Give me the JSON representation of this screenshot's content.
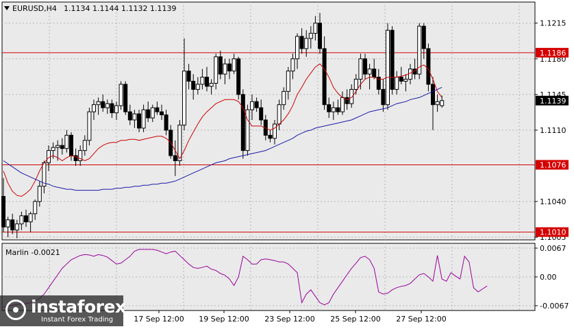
{
  "header": {
    "symbol": "EURUSD,H4",
    "ohlc": "1.1134 1.1144 1.1132 1.1139",
    "menu_icon": "triangle-down-icon"
  },
  "chart_data": [
    {
      "type": "candlestick",
      "title": "EURUSD,H4",
      "ylim": [
        1.1003,
        1.1235
      ],
      "y_ticks": [
        "1.1215",
        "1.1180",
        "1.1145",
        "1.1110",
        "1.1040",
        "1.1005"
      ],
      "price_level_labels": [
        "1.1186",
        "1.1139",
        "1.1076",
        "1.1010"
      ],
      "horizontal_levels": [
        1.1186,
        1.1076,
        1.101
      ],
      "current_price": 1.1139,
      "x_tick_labels": [
        "17 Sep 12:00",
        "19 Sep 12:00",
        "23 Sep 12:00",
        "25 Sep 12:00",
        "27 Sep 12:00"
      ],
      "candles": [
        [
          1.1045,
          1.1063,
          1.101,
          1.1015
        ],
        [
          1.1015,
          1.1025,
          1.1005,
          1.1022
        ],
        [
          1.1022,
          1.1028,
          1.1008,
          1.1012
        ],
        [
          1.1012,
          1.1022,
          1.1004,
          1.1018
        ],
        [
          1.1018,
          1.103,
          1.1012,
          1.1026
        ],
        [
          1.1026,
          1.1032,
          1.1015,
          1.102
        ],
        [
          1.102,
          1.103,
          1.101,
          1.1028
        ],
        [
          1.1028,
          1.1042,
          1.1022,
          1.104
        ],
        [
          1.104,
          1.106,
          1.1035,
          1.1055
        ],
        [
          1.1055,
          1.108,
          1.1048,
          1.1078
        ],
        [
          1.1078,
          1.1095,
          1.107,
          1.109
        ],
        [
          1.109,
          1.1098,
          1.1082,
          1.1093
        ],
        [
          1.1093,
          1.11,
          1.108,
          1.1095
        ],
        [
          1.1095,
          1.1102,
          1.1086,
          1.1092
        ],
        [
          1.1092,
          1.111,
          1.1088,
          1.1105
        ],
        [
          1.1105,
          1.1108,
          1.108,
          1.1085
        ],
        [
          1.1085,
          1.1092,
          1.1075,
          1.108
        ],
        [
          1.108,
          1.1095,
          1.1075,
          1.109
        ],
        [
          1.109,
          1.1105,
          1.1085,
          1.11
        ],
        [
          1.11,
          1.1132,
          1.1095,
          1.1128
        ],
        [
          1.1128,
          1.114,
          1.112,
          1.1135
        ],
        [
          1.1135,
          1.1142,
          1.1125,
          1.1138
        ],
        [
          1.1138,
          1.1145,
          1.1128,
          1.1132
        ],
        [
          1.1132,
          1.114,
          1.1126,
          1.1136
        ],
        [
          1.1136,
          1.114,
          1.1122,
          1.1127
        ],
        [
          1.1127,
          1.1138,
          1.112,
          1.1134
        ],
        [
          1.1134,
          1.1158,
          1.113,
          1.1155
        ],
        [
          1.1155,
          1.1158,
          1.1125,
          1.1128
        ],
        [
          1.1128,
          1.1135,
          1.1115,
          1.112
        ],
        [
          1.112,
          1.113,
          1.1112,
          1.1126
        ],
        [
          1.1126,
          1.113,
          1.1108,
          1.1112
        ],
        [
          1.1112,
          1.1135,
          1.1108,
          1.113
        ],
        [
          1.113,
          1.1138,
          1.1118,
          1.1122
        ],
        [
          1.1122,
          1.1135,
          1.1118,
          1.1132
        ],
        [
          1.1132,
          1.1138,
          1.1125,
          1.1128
        ],
        [
          1.1128,
          1.1135,
          1.112,
          1.1125
        ],
        [
          1.1125,
          1.113,
          1.1105,
          1.111
        ],
        [
          1.111,
          1.1115,
          1.1082,
          1.1085
        ],
        [
          1.1085,
          1.11,
          1.1065,
          1.108
        ],
        [
          1.108,
          1.112,
          1.1075,
          1.1115
        ],
        [
          1.1115,
          1.12,
          1.111,
          1.1168
        ],
        [
          1.1168,
          1.1175,
          1.115,
          1.1158
        ],
        [
          1.1158,
          1.1165,
          1.114,
          1.115
        ],
        [
          1.115,
          1.1162,
          1.1145,
          1.1155
        ],
        [
          1.1155,
          1.117,
          1.115,
          1.1162
        ],
        [
          1.1162,
          1.1172,
          1.1148,
          1.1153
        ],
        [
          1.1153,
          1.116,
          1.1145,
          1.1156
        ],
        [
          1.1156,
          1.1185,
          1.115,
          1.1182
        ],
        [
          1.1182,
          1.1188,
          1.116,
          1.1165
        ],
        [
          1.1165,
          1.118,
          1.1155,
          1.1175
        ],
        [
          1.1175,
          1.118,
          1.116,
          1.1168
        ],
        [
          1.1168,
          1.1185,
          1.1165,
          1.118
        ],
        [
          1.118,
          1.1182,
          1.114,
          1.1145
        ],
        [
          1.1145,
          1.115,
          1.1082,
          1.109
        ],
        [
          1.109,
          1.1135,
          1.1085,
          1.113
        ],
        [
          1.113,
          1.1145,
          1.112,
          1.1138
        ],
        [
          1.1138,
          1.1142,
          1.1128,
          1.1132
        ],
        [
          1.1132,
          1.114,
          1.1115,
          1.112
        ],
        [
          1.112,
          1.1125,
          1.11,
          1.1105
        ],
        [
          1.1105,
          1.111,
          1.1098,
          1.1102
        ],
        [
          1.1102,
          1.112,
          1.1096,
          1.1116
        ],
        [
          1.1116,
          1.114,
          1.111,
          1.1135
        ],
        [
          1.1135,
          1.1152,
          1.113,
          1.1148
        ],
        [
          1.1148,
          1.1172,
          1.114,
          1.1168
        ],
        [
          1.1168,
          1.1185,
          1.116,
          1.118
        ],
        [
          1.118,
          1.1205,
          1.117,
          1.1202
        ],
        [
          1.1202,
          1.121,
          1.1185,
          1.119
        ],
        [
          1.119,
          1.1208,
          1.1182,
          1.12
        ],
        [
          1.12,
          1.1212,
          1.119,
          1.1205
        ],
        [
          1.1205,
          1.1222,
          1.1198,
          1.1215
        ],
        [
          1.1215,
          1.1225,
          1.1185,
          1.119
        ],
        [
          1.119,
          1.1202,
          1.113,
          1.1135
        ],
        [
          1.1135,
          1.1142,
          1.1122,
          1.1128
        ],
        [
          1.1128,
          1.1138,
          1.112,
          1.1132
        ],
        [
          1.1132,
          1.114,
          1.1125,
          1.1128
        ],
        [
          1.1128,
          1.1148,
          1.1125,
          1.1142
        ],
        [
          1.1142,
          1.115,
          1.113,
          1.1136
        ],
        [
          1.1136,
          1.1155,
          1.1132,
          1.115
        ],
        [
          1.115,
          1.1165,
          1.1145,
          1.116
        ],
        [
          1.116,
          1.1185,
          1.115,
          1.118
        ],
        [
          1.118,
          1.1185,
          1.116,
          1.1165
        ],
        [
          1.1165,
          1.1175,
          1.115,
          1.117
        ],
        [
          1.117,
          1.118,
          1.116,
          1.1162
        ],
        [
          1.1162,
          1.117,
          1.1145,
          1.115
        ],
        [
          1.115,
          1.116,
          1.1128,
          1.1135
        ],
        [
          1.1135,
          1.1215,
          1.113,
          1.1208
        ],
        [
          1.1208,
          1.1212,
          1.1145,
          1.115
        ],
        [
          1.115,
          1.1168,
          1.1145,
          1.1162
        ],
        [
          1.1162,
          1.1172,
          1.1155,
          1.1158
        ],
        [
          1.1158,
          1.1165,
          1.1148,
          1.116
        ],
        [
          1.116,
          1.1175,
          1.1155,
          1.117
        ],
        [
          1.117,
          1.118,
          1.116,
          1.1165
        ],
        [
          1.1165,
          1.1215,
          1.116,
          1.1212
        ],
        [
          1.1212,
          1.1215,
          1.118,
          1.119
        ],
        [
          1.119,
          1.1195,
          1.1148,
          1.1155
        ],
        [
          1.1155,
          1.1162,
          1.111,
          1.1135
        ],
        [
          1.1135,
          1.1145,
          1.1128,
          1.1138
        ],
        [
          1.1134,
          1.1144,
          1.1132,
          1.1139
        ]
      ],
      "series": [
        {
          "color": "#cc0000",
          "values": [
            1.107,
            1.1058,
            1.105,
            1.1046,
            1.1045,
            1.1048,
            1.1052,
            1.106,
            1.107,
            1.1078,
            1.1083,
            1.1085,
            1.1083,
            1.108,
            1.1083,
            1.1085,
            1.1084,
            1.1082,
            1.108,
            1.1082,
            1.1087,
            1.1092,
            1.1095,
            1.1097,
            1.1098,
            1.1098,
            1.11,
            1.11,
            1.1101,
            1.1101,
            1.11,
            1.1101,
            1.1102,
            1.1103,
            1.1104,
            1.1104,
            1.1102,
            1.1098,
            1.109,
            1.1082,
            1.109,
            1.11,
            1.1108,
            1.1116,
            1.1123,
            1.1128,
            1.1132,
            1.1136,
            1.1138,
            1.114,
            1.114,
            1.114,
            1.1138,
            1.1132,
            1.112,
            1.1114,
            1.1114,
            1.1114,
            1.1112,
            1.111,
            1.1112,
            1.1116,
            1.112,
            1.1126,
            1.1134,
            1.1145,
            1.1152,
            1.116,
            1.1166,
            1.1172,
            1.1175,
            1.117,
            1.1162,
            1.1152,
            1.1146,
            1.1142,
            1.114,
            1.1142,
            1.1148,
            1.1155,
            1.116,
            1.1162,
            1.1162,
            1.116,
            1.116,
            1.1162,
            1.1162,
            1.1162,
            1.1163,
            1.1164,
            1.1166,
            1.1168,
            1.1172,
            1.1174,
            1.117,
            1.116,
            1.1148,
            1.1142
          ]
        },
        {
          "color": "#1a1aa8",
          "values": [
            1.108,
            1.1077,
            1.1074,
            1.1071,
            1.1068,
            1.1066,
            1.1064,
            1.1062,
            1.106,
            1.1058,
            1.1057,
            1.1055,
            1.1054,
            1.1053,
            1.1052,
            1.1052,
            1.1051,
            1.1051,
            1.1051,
            1.1051,
            1.1051,
            1.1051,
            1.1052,
            1.1052,
            1.1052,
            1.1053,
            1.1053,
            1.1054,
            1.1054,
            1.1055,
            1.1055,
            1.1056,
            1.1056,
            1.1057,
            1.1057,
            1.1058,
            1.1058,
            1.1059,
            1.106,
            1.1062,
            1.1064,
            1.1066,
            1.1068,
            1.107,
            1.1072,
            1.1074,
            1.1076,
            1.1078,
            1.1079,
            1.108,
            1.1082,
            1.1083,
            1.1084,
            1.1085,
            1.1086,
            1.1087,
            1.1088,
            1.1089,
            1.109,
            1.1092,
            1.1094,
            1.1096,
            1.1098,
            1.11,
            1.1102,
            1.1105,
            1.1107,
            1.1109,
            1.111,
            1.1112,
            1.1113,
            1.1114,
            1.1115,
            1.1116,
            1.1117,
            1.1118,
            1.1119,
            1.112,
            1.1122,
            1.1124,
            1.1126,
            1.1128,
            1.1129,
            1.113,
            1.1131,
            1.1132,
            1.1134,
            1.1136,
            1.1137,
            1.1138,
            1.114,
            1.1141,
            1.1142,
            1.1144,
            1.1146,
            1.1148,
            1.115,
            1.1152
          ]
        }
      ]
    },
    {
      "type": "line",
      "title": "Marlin -0.0021",
      "ylim": [
        -0.0075,
        0.0075
      ],
      "y_ticks": [
        "0.0067",
        "0.00",
        "-0.0067"
      ],
      "series": [
        {
          "color": "#990099",
          "values": [
            -0.007,
            -0.0068,
            -0.0066,
            -0.0064,
            -0.0063,
            -0.0062,
            -0.006,
            -0.0056,
            -0.005,
            -0.004,
            -0.0025,
            -0.001,
            0.0005,
            0.002,
            0.003,
            0.004,
            0.0045,
            0.005,
            0.0052,
            0.0051,
            0.0048,
            0.0052,
            0.005,
            0.0046,
            0.0038,
            0.003,
            0.0032,
            0.004,
            0.0048,
            0.006,
            0.0064,
            0.0064,
            0.0064,
            0.0064,
            0.0062,
            0.0058,
            0.0054,
            0.0058,
            0.006,
            0.005,
            0.004,
            0.003,
            0.0022,
            0.002,
            0.0022,
            0.0025,
            0.0018,
            0.0015,
            0.0008,
            0.0004,
            -0.0005,
            -0.002,
            0.0,
            0.0048,
            0.004,
            0.003,
            0.003,
            0.004,
            0.0042,
            0.004,
            0.0038,
            0.0035,
            0.0035,
            0.003,
            0.002,
            0.001,
            -0.006,
            -0.004,
            -0.003,
            -0.0045,
            -0.006,
            -0.0065,
            -0.006,
            -0.004,
            -0.0025,
            -0.001,
            0.0005,
            0.002,
            0.0032,
            0.0045,
            0.0048,
            0.004,
            0.002,
            -0.0035,
            -0.004,
            -0.0038,
            -0.003,
            -0.0025,
            -0.0022,
            -0.002,
            -0.0015,
            -0.0005,
            0.0005,
            0.0008,
            0.0,
            -0.001,
            0.005,
            -0.0005,
            -0.001,
            0.001,
            0.0002,
            -0.0005,
            0.0048,
            0.0035,
            -0.0025,
            -0.0035,
            -0.0028,
            -0.0021
          ]
        }
      ]
    }
  ],
  "branding": {
    "logo_icon": "instaforex-logo-icon",
    "name": "instaforex",
    "tagline": "Instant Forex Trading"
  }
}
